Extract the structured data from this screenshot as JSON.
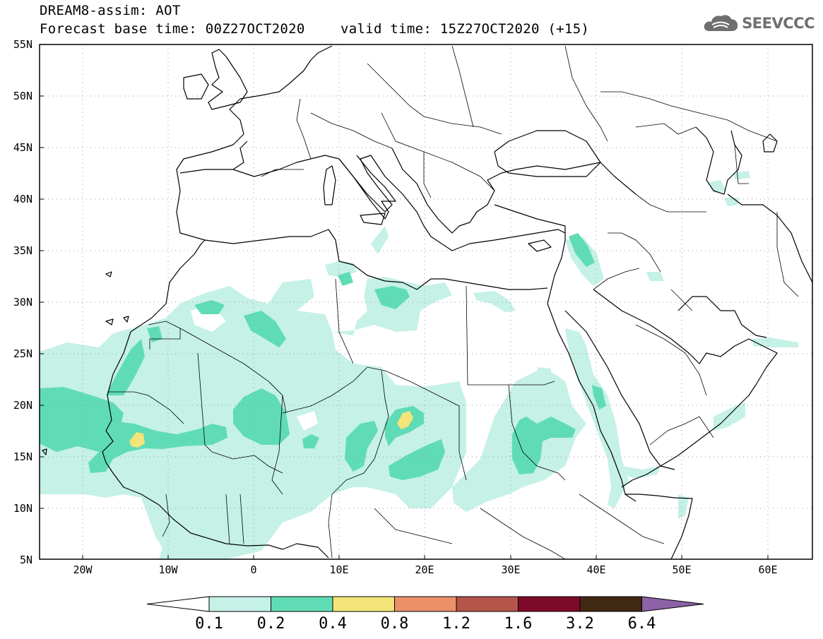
{
  "header": {
    "title": "DREAM8-assim: AOT",
    "base_time": "Forecast base time: 00Z27OCT2020",
    "valid_time": "valid time: 15Z27OCT2020 (+15)"
  },
  "logo": {
    "text": "SEEVCCC",
    "icon": "cloud-icon"
  },
  "axes": {
    "lat_labels": [
      "55N",
      "50N",
      "45N",
      "40N",
      "35N",
      "30N",
      "25N",
      "20N",
      "15N",
      "10N",
      "5N"
    ],
    "lon_labels": [
      "20W",
      "10W",
      "0",
      "10E",
      "20E",
      "30E",
      "40E",
      "50E",
      "60E"
    ]
  },
  "colorbar": {
    "levels": [
      "0.1",
      "0.2",
      "0.4",
      "0.8",
      "1.2",
      "1.6",
      "3.2",
      "6.4"
    ],
    "colors": [
      "#ffffff",
      "#c5f1e7",
      "#5fdcb6",
      "#f4e57a",
      "#eb9068",
      "#b5554a",
      "#7e0a2a",
      "#402812",
      "#8e62a6"
    ]
  }
}
